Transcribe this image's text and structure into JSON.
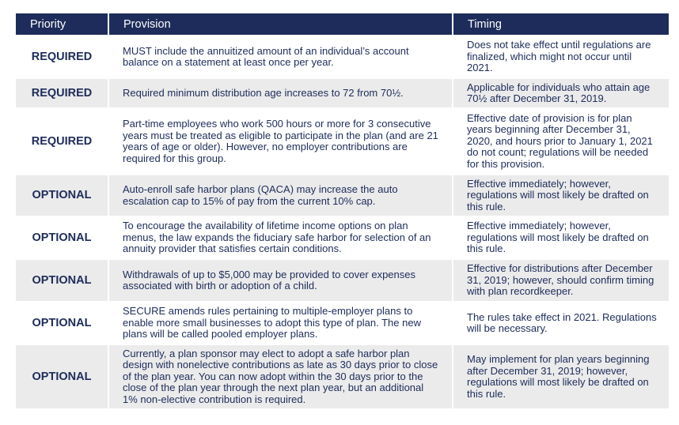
{
  "table": {
    "columns": [
      "Priority",
      "Provision",
      "Timing"
    ],
    "rows": [
      [
        "REQUIRED",
        "MUST include the annuitized amount of an individual’s account balance on a statement at least once per year.",
        "Does not take effect until regulations are finalized, which might not occur until 2021."
      ],
      [
        "REQUIRED",
        "Required minimum distribution age increases to 72 from 70½.",
        "Applicable for individuals who attain age 70½ after December 31, 2019."
      ],
      [
        "REQUIRED",
        "Part-time employees who work 500 hours or more for 3 consecutive years must be treated as eligible to participate in the plan (and are 21 years of age or older). However, no employer contributions are required for this group.",
        "Effective date of provision is for plan years beginning after December 31, 2020, and hours prior to January 1, 2021 do not count; regulations will be needed for this provision."
      ],
      [
        "OPTIONAL",
        "Auto-enroll safe harbor plans (QACA) may increase the auto escalation cap to 15% of pay from the current 10% cap.",
        "Effective immediately; however, regulations will most likely be drafted on this rule."
      ],
      [
        "OPTIONAL",
        "To encourage the availability of lifetime income options on plan menus, the law expands the fiduciary safe harbor for selection of an annuity provider that satisfies certain conditions.",
        "Effective immediately; however, regulations will most likely be drafted on this rule."
      ],
      [
        "OPTIONAL",
        "Withdrawals of up to $5,000 may be provided to cover expenses associated with birth or adoption of a child.",
        "Effective for distributions after December 31, 2019; however, should confirm timing with plan recordkeeper."
      ],
      [
        "OPTIONAL",
        "SECURE amends rules pertaining to multiple-employer plans to enable more small businesses to adopt this type of plan. The new plans will be called pooled employer plans.",
        "The rules take effect in 2021. Regulations will be necessary."
      ],
      [
        "OPTIONAL",
        "Currently, a plan sponsor may elect to adopt a safe harbor plan design with nonelective contributions as late as 30 days prior to close of the plan year. You can now adopt within the 30 days prior to the close of the plan year through the next plan year, but an additional 1% non-elective contribution is required.",
        "May implement for plan years beginning after December 31, 2019; however, regulations will most likely be drafted on this rule."
      ]
    ]
  }
}
